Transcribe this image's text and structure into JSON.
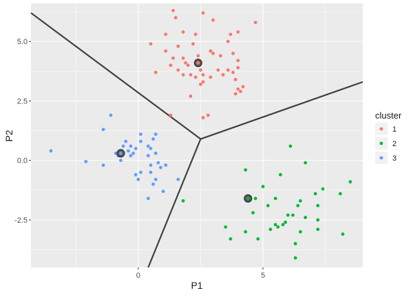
{
  "chart_data": {
    "type": "scatter",
    "title": "",
    "xlabel": "P1",
    "ylabel": "P2",
    "xlim": [
      -4.3,
      9.0
    ],
    "ylim": [
      -4.5,
      6.6
    ],
    "x_ticks": [
      0,
      5
    ],
    "x_tick_labels": [
      "0",
      "5"
    ],
    "y_ticks": [
      -2.5,
      0.0,
      2.5,
      5.0
    ],
    "y_tick_labels": [
      "-2.5",
      "0.0",
      "2.5",
      "5.0"
    ],
    "grid": true,
    "legend": {
      "title": "cluster",
      "placement": "right",
      "entries": [
        {
          "label": "1",
          "color": "#F8766D"
        },
        {
          "label": "2",
          "color": "#00BA38"
        },
        {
          "label": "3",
          "color": "#619CFF"
        }
      ]
    },
    "series": [
      {
        "name": "1",
        "color": "#F8766D",
        "points": [
          [
            1.4,
            6.3
          ],
          [
            1.5,
            6.0
          ],
          [
            2.6,
            6.2
          ],
          [
            3.0,
            5.9
          ],
          [
            4.7,
            5.8
          ],
          [
            1.1,
            5.3
          ],
          [
            1.8,
            5.4
          ],
          [
            2.3,
            5.3
          ],
          [
            3.7,
            5.3
          ],
          [
            4.0,
            5.4
          ],
          [
            0.5,
            4.9
          ],
          [
            1.6,
            4.8
          ],
          [
            2.2,
            4.9
          ],
          [
            3.6,
            5.0
          ],
          [
            2.9,
            4.6
          ],
          [
            2.4,
            4.4
          ],
          [
            3.3,
            4.4
          ],
          [
            1.4,
            4.3
          ],
          [
            1.1,
            4.6
          ],
          [
            1.8,
            4.3
          ],
          [
            3.0,
            4.5
          ],
          [
            3.8,
            4.5
          ],
          [
            4.0,
            4.2
          ],
          [
            1.9,
            4.1
          ],
          [
            2.0,
            4.0
          ],
          [
            1.3,
            4.0
          ],
          [
            1.6,
            3.8
          ],
          [
            2.5,
            3.8
          ],
          [
            2.6,
            3.6
          ],
          [
            3.2,
            3.8
          ],
          [
            3.6,
            3.8
          ],
          [
            3.8,
            3.7
          ],
          [
            4.0,
            3.9
          ],
          [
            2.1,
            3.6
          ],
          [
            2.9,
            3.5
          ],
          [
            0.7,
            3.7
          ],
          [
            1.8,
            3.6
          ],
          [
            2.3,
            3.5
          ],
          [
            2.5,
            3.2
          ],
          [
            3.4,
            3.6
          ],
          [
            3.9,
            3.4
          ],
          [
            2.6,
            3.3
          ],
          [
            4.0,
            3.0
          ],
          [
            4.2,
            3.1
          ],
          [
            3.9,
            2.8
          ],
          [
            4.1,
            2.9
          ],
          [
            2.1,
            2.7
          ],
          [
            1.3,
            1.9
          ],
          [
            2.6,
            1.8
          ],
          [
            2.8,
            1.9
          ]
        ]
      },
      {
        "name": "2",
        "color": "#00BA38",
        "points": [
          [
            6.1,
            0.6
          ],
          [
            6.7,
            -0.1
          ],
          [
            4.3,
            -0.4
          ],
          [
            5.7,
            -0.6
          ],
          [
            8.5,
            -0.9
          ],
          [
            5.0,
            -1.1
          ],
          [
            7.4,
            -1.2
          ],
          [
            7.1,
            -1.4
          ],
          [
            8.1,
            -1.4
          ],
          [
            4.7,
            -1.6
          ],
          [
            5.5,
            -1.6
          ],
          [
            1.8,
            -1.7
          ],
          [
            6.5,
            -1.7
          ],
          [
            6.4,
            -1.9
          ],
          [
            5.2,
            -1.9
          ],
          [
            7.2,
            -1.9
          ],
          [
            4.6,
            -2.2
          ],
          [
            6.0,
            -2.3
          ],
          [
            6.2,
            -2.3
          ],
          [
            6.7,
            -2.4
          ],
          [
            7.2,
            -2.5
          ],
          [
            5.9,
            -2.6
          ],
          [
            5.5,
            -2.7
          ],
          [
            5.8,
            -2.7
          ],
          [
            3.5,
            -2.8
          ],
          [
            5.6,
            -2.8
          ],
          [
            5.3,
            -2.9
          ],
          [
            7.2,
            -2.9
          ],
          [
            4.3,
            -3.0
          ],
          [
            6.5,
            -3.0
          ],
          [
            8.2,
            -3.1
          ],
          [
            3.7,
            -3.3
          ],
          [
            4.8,
            -3.3
          ],
          [
            6.3,
            -3.5
          ],
          [
            6.3,
            -4.1
          ]
        ]
      },
      {
        "name": "3",
        "color": "#619CFF",
        "points": [
          [
            -1.1,
            1.9
          ],
          [
            -1.4,
            1.3
          ],
          [
            0.1,
            1.1
          ],
          [
            0.6,
            0.9
          ],
          [
            0.7,
            1.1
          ],
          [
            -0.5,
            0.8
          ],
          [
            0.1,
            0.8
          ],
          [
            -0.6,
            0.6
          ],
          [
            -0.3,
            0.6
          ],
          [
            -0.1,
            0.5
          ],
          [
            0.4,
            0.6
          ],
          [
            0.5,
            0.5
          ],
          [
            -3.5,
            0.4
          ],
          [
            -0.4,
            0.4
          ],
          [
            -0.2,
            0.3
          ],
          [
            0.7,
            0.3
          ],
          [
            -0.9,
            0.3
          ],
          [
            -0.7,
            0.3
          ],
          [
            -0.3,
            0.2
          ],
          [
            0.4,
            0.2
          ],
          [
            -2.1,
            -0.05
          ],
          [
            -0.7,
            0.0
          ],
          [
            0.8,
            -0.1
          ],
          [
            -1.4,
            -0.2
          ],
          [
            0.5,
            -0.2
          ],
          [
            1.1,
            -0.2
          ],
          [
            0.9,
            -0.3
          ],
          [
            -0.1,
            -0.6
          ],
          [
            0.1,
            -0.5
          ],
          [
            0.5,
            -0.5
          ],
          [
            0.0,
            -0.8
          ],
          [
            0.7,
            -0.8
          ],
          [
            1.6,
            -0.8
          ],
          [
            0.6,
            -1.0
          ],
          [
            1.0,
            -1.3
          ],
          [
            0.4,
            -1.6
          ],
          [
            -0.8,
            0.2
          ]
        ]
      }
    ],
    "centroids": [
      {
        "cluster": "1",
        "x": 2.4,
        "y": 4.1
      },
      {
        "cluster": "2",
        "x": 4.4,
        "y": -1.6
      },
      {
        "cluster": "3",
        "x": -0.7,
        "y": 0.3
      }
    ],
    "boundaries": [
      {
        "from": [
          2.5,
          0.9
        ],
        "to": [
          -4.3,
          6.2
        ]
      },
      {
        "from": [
          2.5,
          0.9
        ],
        "to": [
          9.0,
          3.3
        ]
      },
      {
        "from": [
          2.5,
          0.9
        ],
        "to": [
          0.4,
          -4.5
        ]
      }
    ]
  }
}
